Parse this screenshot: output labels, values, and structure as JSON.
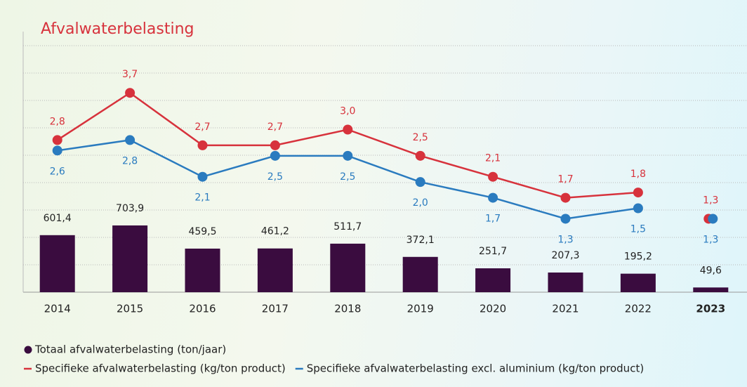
{
  "chart_data": {
    "type": "bar_line",
    "title": "Afvalwaterbelasting",
    "categories": [
      "2014",
      "2015",
      "2016",
      "2017",
      "2018",
      "2019",
      "2020",
      "2021",
      "2022",
      "2023"
    ],
    "ylim": [
      0,
      2600
    ],
    "y2lim": [
      -0.1,
      4.6
    ],
    "grid": true,
    "series": [
      {
        "name": "Totaal afvalwaterbelasting (ton/jaar)",
        "color": "#3a0c3f",
        "kind": "bar",
        "values": [
          601.4,
          703.9,
          459.5,
          461.2,
          511.7,
          372.1,
          251.7,
          207.3,
          195.2,
          49.6
        ],
        "value_labels": [
          "601,4",
          "703,9",
          "459,5",
          "461,2",
          "511,7",
          "372,1",
          "251,7",
          "207,3",
          "195,2",
          "49,6"
        ]
      },
      {
        "name": "Specifieke afvalwaterbelasting (kg/ton product)",
        "color": "#d7323c",
        "kind": "line",
        "axis": "y2",
        "values": [
          2.8,
          3.7,
          2.7,
          2.7,
          3.0,
          2.5,
          2.1,
          1.7,
          1.8,
          1.3
        ],
        "value_labels": [
          "2,8",
          "3,7",
          "2,7",
          "2,7",
          "3,0",
          "2,5",
          "2,1",
          "1,7",
          "1,8",
          "1,3"
        ]
      },
      {
        "name": "Specifieke afvalwaterbelasting excl. aluminium (kg/ton product)",
        "color": "#2a7bbf",
        "kind": "line",
        "axis": "y2",
        "values": [
          2.6,
          2.8,
          2.1,
          2.5,
          2.5,
          2.0,
          1.7,
          1.3,
          1.5,
          1.3
        ],
        "value_labels": [
          "2,6",
          "2,8",
          "2,1",
          "2,5",
          "2,5",
          "2,0",
          "1,7",
          "1,3",
          "1,5",
          "1,3"
        ]
      }
    ]
  }
}
